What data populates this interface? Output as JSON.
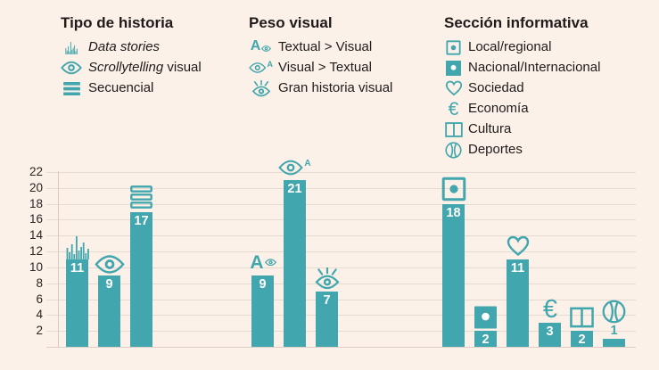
{
  "colors": {
    "teal": "#41a6ad",
    "background": "#fbf1e8",
    "grid": "#e7dad1",
    "text": "#221e1d",
    "bar_label": "#ffffff"
  },
  "legends": [
    {
      "title": "Tipo de historia",
      "items": [
        {
          "icon": "mini-bar-chart-icon",
          "parts": [
            {
              "text": "Data stories",
              "italic": true
            }
          ]
        },
        {
          "icon": "eye-icon",
          "parts": [
            {
              "text": "Scrollytelling",
              "italic": true
            },
            {
              "text": " visual",
              "italic": false
            }
          ]
        },
        {
          "icon": "stacked-lines-icon",
          "parts": [
            {
              "text": "Secuencial",
              "italic": false
            }
          ]
        }
      ]
    },
    {
      "title": "Peso visual",
      "items": [
        {
          "icon": "letter-a-eye-icon",
          "parts": [
            {
              "text": "Textual > Visual",
              "italic": false
            }
          ]
        },
        {
          "icon": "eye-letter-a-icon",
          "parts": [
            {
              "text": "Visual > Textual",
              "italic": false
            }
          ]
        },
        {
          "icon": "radiant-eye-icon",
          "parts": [
            {
              "text": "Gran historia visual",
              "italic": false
            }
          ]
        }
      ]
    },
    {
      "title": "Sección informativa",
      "items": [
        {
          "icon": "square-dot-outline-icon",
          "parts": [
            {
              "text": "Local/regional",
              "italic": false
            }
          ]
        },
        {
          "icon": "square-dot-filled-icon",
          "parts": [
            {
              "text": "Nacional/Internacional",
              "italic": false
            }
          ]
        },
        {
          "icon": "heart-icon",
          "parts": [
            {
              "text": "Sociedad",
              "italic": false
            }
          ]
        },
        {
          "icon": "euro-icon",
          "parts": [
            {
              "text": "Economía",
              "italic": false
            }
          ]
        },
        {
          "icon": "window-panes-icon",
          "parts": [
            {
              "text": "Cultura",
              "italic": false
            }
          ]
        },
        {
          "icon": "ball-icon",
          "parts": [
            {
              "text": "Deportes",
              "italic": false
            }
          ]
        }
      ]
    }
  ],
  "chart_data": {
    "type": "bar",
    "title": "",
    "xlabel": "",
    "ylabel": "",
    "ylim": [
      0,
      22
    ],
    "yticks": [
      2,
      4,
      6,
      8,
      10,
      12,
      14,
      16,
      18,
      20,
      22
    ],
    "grid": "horizontal",
    "bar_color": "#41a6ad",
    "groups": [
      {
        "legend": "Tipo de historia",
        "bars": [
          {
            "label": "Data stories",
            "icon": "mini-bar-chart-icon",
            "value": 11
          },
          {
            "label": "Scrollytelling visual",
            "icon": "eye-icon",
            "value": 9
          },
          {
            "label": "Secuencial",
            "icon": "stacked-lines-icon",
            "value": 17
          }
        ]
      },
      {
        "legend": "Peso visual",
        "bars": [
          {
            "label": "Textual > Visual",
            "icon": "letter-a-eye-icon",
            "value": 9
          },
          {
            "label": "Visual > Textual",
            "icon": "eye-letter-a-icon",
            "value": 21
          },
          {
            "label": "Gran historia visual",
            "icon": "radiant-eye-icon",
            "value": 7
          }
        ]
      },
      {
        "legend": "Sección informativa",
        "bars": [
          {
            "label": "Local/regional",
            "icon": "square-dot-outline-icon",
            "value": 18
          },
          {
            "label": "Nacional/Internacional",
            "icon": "square-dot-filled-icon",
            "value": 2
          },
          {
            "label": "Sociedad",
            "icon": "heart-icon",
            "value": 11
          },
          {
            "label": "Economía",
            "icon": "euro-icon",
            "value": 3
          },
          {
            "label": "Cultura",
            "icon": "window-panes-icon",
            "value": 2
          },
          {
            "label": "Deportes",
            "icon": "ball-icon",
            "value": 1
          }
        ]
      }
    ]
  }
}
